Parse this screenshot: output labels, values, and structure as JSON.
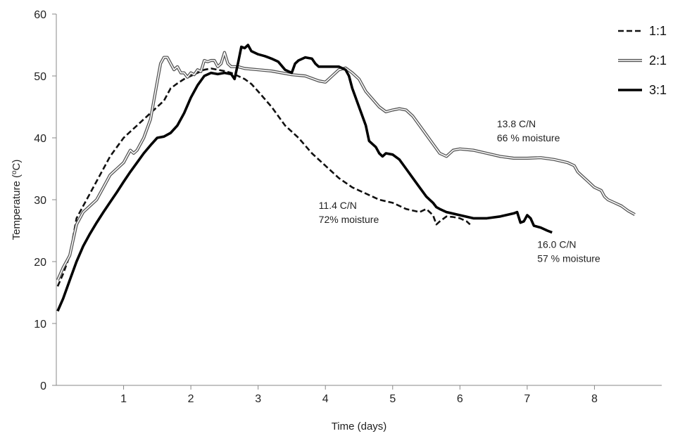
{
  "chart_data": {
    "type": "line",
    "xlabel": "Time (days)",
    "ylabel_base": "Temperature (",
    "ylabel_sup": "o",
    "ylabel_end": "C)",
    "xlim": [
      0,
      9
    ],
    "ylim": [
      0,
      60
    ],
    "xticks": [
      1,
      2,
      3,
      4,
      5,
      6,
      7,
      8
    ],
    "yticks": [
      0,
      10,
      20,
      30,
      40,
      50,
      60
    ],
    "grid": false,
    "legend_position": "top-right",
    "series": [
      {
        "name": "1:1",
        "style": "dashed",
        "color": "#111111",
        "points": [
          [
            0.02,
            16
          ],
          [
            0.1,
            18
          ],
          [
            0.2,
            21
          ],
          [
            0.3,
            27
          ],
          [
            0.4,
            29
          ],
          [
            0.5,
            31
          ],
          [
            0.6,
            33
          ],
          [
            0.7,
            35
          ],
          [
            0.8,
            37
          ],
          [
            0.9,
            38.5
          ],
          [
            1.0,
            40
          ],
          [
            1.1,
            41
          ],
          [
            1.2,
            42
          ],
          [
            1.3,
            43
          ],
          [
            1.4,
            44
          ],
          [
            1.5,
            45
          ],
          [
            1.6,
            46
          ],
          [
            1.7,
            48
          ],
          [
            1.8,
            48.8
          ],
          [
            1.9,
            49.5
          ],
          [
            2.0,
            50
          ],
          [
            2.1,
            50.5
          ],
          [
            2.2,
            51
          ],
          [
            2.3,
            51.2
          ],
          [
            2.4,
            51
          ],
          [
            2.5,
            50.8
          ],
          [
            2.6,
            50.5
          ],
          [
            2.7,
            50
          ],
          [
            2.8,
            49.5
          ],
          [
            2.9,
            48.7
          ],
          [
            3.0,
            47.5
          ],
          [
            3.2,
            45
          ],
          [
            3.4,
            42
          ],
          [
            3.6,
            40
          ],
          [
            3.8,
            37.5
          ],
          [
            4.0,
            35.5
          ],
          [
            4.2,
            33.5
          ],
          [
            4.4,
            32
          ],
          [
            4.6,
            31
          ],
          [
            4.8,
            30
          ],
          [
            5.0,
            29.5
          ],
          [
            5.2,
            28.5
          ],
          [
            5.4,
            28
          ],
          [
            5.5,
            28.5
          ],
          [
            5.6,
            27.5
          ],
          [
            5.65,
            26
          ],
          [
            5.7,
            26.5
          ],
          [
            5.8,
            27.3
          ],
          [
            5.9,
            27.2
          ],
          [
            6.0,
            27
          ],
          [
            6.1,
            26.5
          ],
          [
            6.15,
            26
          ]
        ]
      },
      {
        "name": "2:1",
        "style": "double",
        "color": "#555555",
        "points": [
          [
            0.02,
            17
          ],
          [
            0.1,
            19
          ],
          [
            0.2,
            21
          ],
          [
            0.3,
            26
          ],
          [
            0.4,
            28
          ],
          [
            0.5,
            29
          ],
          [
            0.6,
            30
          ],
          [
            0.7,
            32
          ],
          [
            0.8,
            34
          ],
          [
            0.9,
            35
          ],
          [
            1.0,
            36
          ],
          [
            1.05,
            37
          ],
          [
            1.1,
            38
          ],
          [
            1.15,
            37.5
          ],
          [
            1.2,
            38
          ],
          [
            1.3,
            40
          ],
          [
            1.4,
            43
          ],
          [
            1.5,
            49
          ],
          [
            1.55,
            52
          ],
          [
            1.6,
            53
          ],
          [
            1.65,
            53
          ],
          [
            1.7,
            52
          ],
          [
            1.75,
            51
          ],
          [
            1.8,
            51.5
          ],
          [
            1.85,
            50.5
          ],
          [
            1.9,
            50.5
          ],
          [
            1.95,
            49.8
          ],
          [
            2.0,
            50.5
          ],
          [
            2.05,
            50.2
          ],
          [
            2.1,
            51
          ],
          [
            2.15,
            50.7
          ],
          [
            2.2,
            52.5
          ],
          [
            2.25,
            52.3
          ],
          [
            2.3,
            52.5
          ],
          [
            2.35,
            52.5
          ],
          [
            2.4,
            51.5
          ],
          [
            2.45,
            52
          ],
          [
            2.5,
            53.8
          ],
          [
            2.55,
            52
          ],
          [
            2.6,
            51.5
          ],
          [
            2.7,
            51.5
          ],
          [
            2.8,
            51.2
          ],
          [
            3.0,
            51
          ],
          [
            3.2,
            50.8
          ],
          [
            3.5,
            50.2
          ],
          [
            3.7,
            50
          ],
          [
            3.9,
            49.2
          ],
          [
            4.0,
            49
          ],
          [
            4.05,
            49.5
          ],
          [
            4.1,
            50
          ],
          [
            4.2,
            51
          ],
          [
            4.3,
            51.3
          ],
          [
            4.4,
            50.5
          ],
          [
            4.5,
            49.5
          ],
          [
            4.6,
            47.5
          ],
          [
            4.8,
            45
          ],
          [
            4.9,
            44.2
          ],
          [
            5.0,
            44.5
          ],
          [
            5.1,
            44.7
          ],
          [
            5.2,
            44.5
          ],
          [
            5.3,
            43.5
          ],
          [
            5.4,
            42
          ],
          [
            5.5,
            40.5
          ],
          [
            5.6,
            39
          ],
          [
            5.7,
            37.5
          ],
          [
            5.8,
            37
          ],
          [
            5.85,
            37.5
          ],
          [
            5.9,
            38
          ],
          [
            6.0,
            38.2
          ],
          [
            6.2,
            38
          ],
          [
            6.4,
            37.5
          ],
          [
            6.6,
            37
          ],
          [
            6.8,
            36.7
          ],
          [
            7.0,
            36.7
          ],
          [
            7.2,
            36.8
          ],
          [
            7.4,
            36.5
          ],
          [
            7.6,
            36
          ],
          [
            7.7,
            35.5
          ],
          [
            7.75,
            34.5
          ],
          [
            7.8,
            34
          ],
          [
            7.9,
            33
          ],
          [
            8.0,
            32
          ],
          [
            8.1,
            31.5
          ],
          [
            8.15,
            30.5
          ],
          [
            8.2,
            30
          ],
          [
            8.3,
            29.5
          ],
          [
            8.4,
            29
          ],
          [
            8.5,
            28.2
          ],
          [
            8.6,
            27.6
          ]
        ]
      },
      {
        "name": "3:1",
        "style": "solid-thick",
        "color": "#000000",
        "points": [
          [
            0.02,
            12
          ],
          [
            0.1,
            14
          ],
          [
            0.2,
            17
          ],
          [
            0.3,
            20
          ],
          [
            0.4,
            22.5
          ],
          [
            0.5,
            24.5
          ],
          [
            0.6,
            26.3
          ],
          [
            0.7,
            28
          ],
          [
            0.8,
            29.6
          ],
          [
            0.9,
            31.2
          ],
          [
            1.0,
            32.9
          ],
          [
            1.1,
            34.5
          ],
          [
            1.2,
            36
          ],
          [
            1.3,
            37.5
          ],
          [
            1.4,
            38.8
          ],
          [
            1.5,
            40
          ],
          [
            1.6,
            40.2
          ],
          [
            1.7,
            40.8
          ],
          [
            1.8,
            42
          ],
          [
            1.9,
            44
          ],
          [
            2.0,
            46.5
          ],
          [
            2.1,
            48.5
          ],
          [
            2.2,
            50
          ],
          [
            2.3,
            50.5
          ],
          [
            2.4,
            50.3
          ],
          [
            2.5,
            50.5
          ],
          [
            2.6,
            50.3
          ],
          [
            2.65,
            49.5
          ],
          [
            2.7,
            52
          ],
          [
            2.75,
            54.7
          ],
          [
            2.8,
            54.5
          ],
          [
            2.85,
            55
          ],
          [
            2.9,
            54
          ],
          [
            3.0,
            53.5
          ],
          [
            3.1,
            53.2
          ],
          [
            3.2,
            52.8
          ],
          [
            3.3,
            52.3
          ],
          [
            3.4,
            51
          ],
          [
            3.5,
            50.5
          ],
          [
            3.55,
            52
          ],
          [
            3.6,
            52.5
          ],
          [
            3.7,
            53
          ],
          [
            3.8,
            52.8
          ],
          [
            3.85,
            52
          ],
          [
            3.9,
            51.5
          ],
          [
            4.0,
            51.5
          ],
          [
            4.1,
            51.5
          ],
          [
            4.2,
            51.5
          ],
          [
            4.3,
            51
          ],
          [
            4.35,
            50
          ],
          [
            4.4,
            48
          ],
          [
            4.5,
            45
          ],
          [
            4.6,
            42
          ],
          [
            4.65,
            39.5
          ],
          [
            4.7,
            39
          ],
          [
            4.75,
            38.5
          ],
          [
            4.8,
            37.5
          ],
          [
            4.85,
            37
          ],
          [
            4.9,
            37.5
          ],
          [
            5.0,
            37.3
          ],
          [
            5.1,
            36.5
          ],
          [
            5.2,
            35
          ],
          [
            5.3,
            33.5
          ],
          [
            5.4,
            32
          ],
          [
            5.5,
            30.5
          ],
          [
            5.6,
            29.5
          ],
          [
            5.65,
            28.8
          ],
          [
            5.7,
            28.5
          ],
          [
            5.8,
            28
          ],
          [
            6.0,
            27.5
          ],
          [
            6.2,
            27
          ],
          [
            6.4,
            27
          ],
          [
            6.6,
            27.3
          ],
          [
            6.8,
            27.8
          ],
          [
            6.85,
            28
          ],
          [
            6.9,
            26.3
          ],
          [
            6.95,
            26.5
          ],
          [
            7.0,
            27.5
          ],
          [
            7.05,
            27
          ],
          [
            7.1,
            25.8
          ],
          [
            7.2,
            25.5
          ],
          [
            7.3,
            25
          ],
          [
            7.37,
            24.7
          ]
        ]
      }
    ],
    "annotations": [
      {
        "lines": [
          "13.8 C/N",
          "66 % moisture"
        ],
        "x": 6.55,
        "y": 41.7,
        "series": "2:1"
      },
      {
        "lines": [
          "11.4 C/N",
          "72% moisture"
        ],
        "x": 3.9,
        "y": 28.5,
        "series": "1:1"
      },
      {
        "lines": [
          "16.0 C/N",
          "57 % moisture"
        ],
        "x": 7.15,
        "y": 22.2,
        "series": "3:1"
      }
    ]
  }
}
